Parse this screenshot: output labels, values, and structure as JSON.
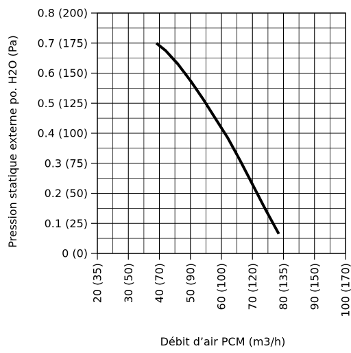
{
  "chart_data": {
    "type": "line",
    "title": "",
    "xlabel": "Débit d’air PCM (m3/h)",
    "ylabel": "Pression statique externe po. H2O (Pa)",
    "xlim": [
      20,
      100
    ],
    "ylim": [
      0,
      0.8
    ],
    "x_ticks": [
      {
        "value": 20,
        "label": "20 (35)"
      },
      {
        "value": 30,
        "label": "30 (50)"
      },
      {
        "value": 40,
        "label": "40 (70)"
      },
      {
        "value": 50,
        "label": "50 (90)"
      },
      {
        "value": 60,
        "label": "60 (100)"
      },
      {
        "value": 70,
        "label": "70 (120)"
      },
      {
        "value": 80,
        "label": "80 (135)"
      },
      {
        "value": 90,
        "label": "90 (150)"
      },
      {
        "value": 100,
        "label": "100 (170)"
      }
    ],
    "y_ticks": [
      {
        "value": 0,
        "label": "0 (0)"
      },
      {
        "value": 0.1,
        "label": "0.1 (25)"
      },
      {
        "value": 0.2,
        "label": "0.2 (50)"
      },
      {
        "value": 0.3,
        "label": "0.3 (75)"
      },
      {
        "value": 0.4,
        "label": "0.4 (100)"
      },
      {
        "value": 0.5,
        "label": "0.5 (125)"
      },
      {
        "value": 0.6,
        "label": "0.6 (150)"
      },
      {
        "value": 0.7,
        "label": "0.7 (175)"
      },
      {
        "value": 0.8,
        "label": "0.8 (200)"
      }
    ],
    "minor_x_step": 5,
    "minor_y_step": 0.05,
    "grid": true,
    "legend": "none",
    "series": [
      {
        "color": "#000000",
        "x": [
          39,
          42,
          46,
          50,
          54,
          58,
          62,
          66,
          70,
          74,
          78.5
        ],
        "y": [
          0.7,
          0.675,
          0.63,
          0.575,
          0.515,
          0.45,
          0.385,
          0.31,
          0.23,
          0.15,
          0.065
        ]
      }
    ]
  }
}
